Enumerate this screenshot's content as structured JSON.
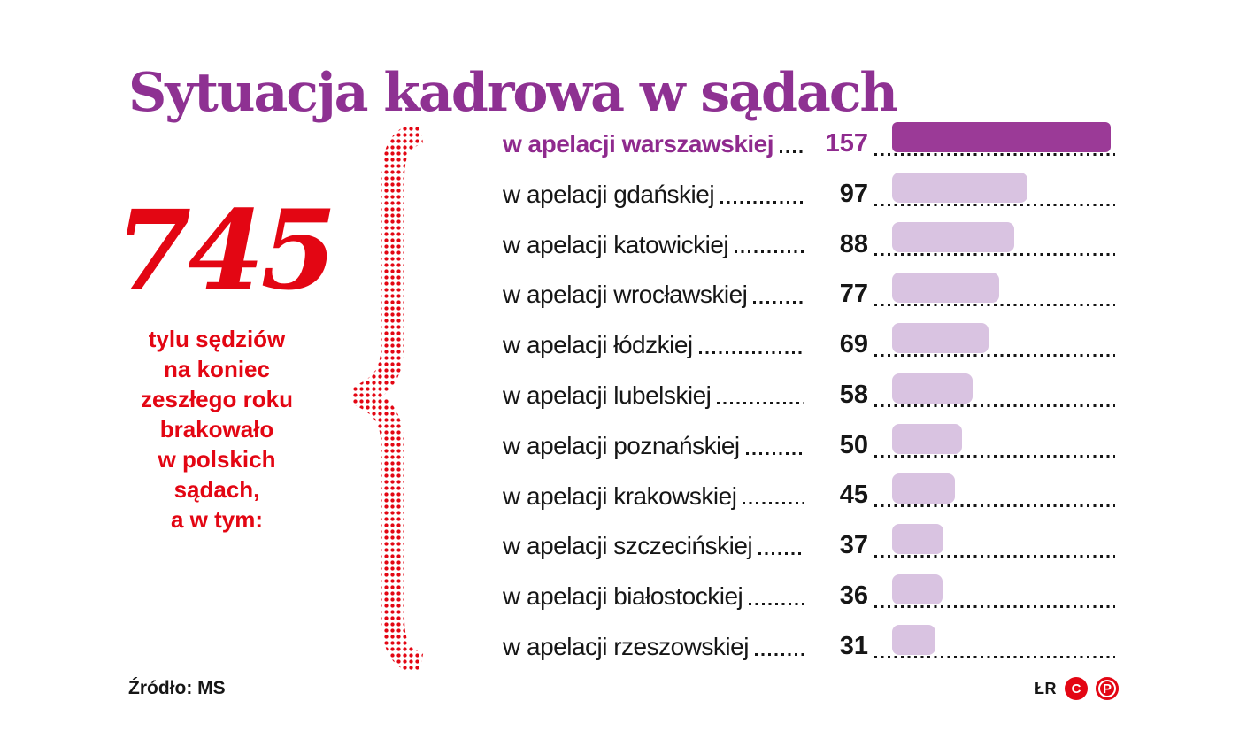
{
  "title": "Sytuacja kadrowa w sądach",
  "stat": {
    "number": "745",
    "description_lines": [
      "tylu sędziów",
      "na koniec",
      "zeszłego roku",
      "brakowało",
      "w polskich",
      "sądach,",
      "a w tym:"
    ]
  },
  "chart_data": {
    "type": "bar",
    "orientation": "horizontal",
    "title": "Sytuacja kadrowa w sądach",
    "categories": [
      "w apelacji warszawskiej",
      "w apelacji gdańskiej",
      "w apelacji katowickiej",
      "w apelacji wrocławskiej",
      "w apelacji łódzkiej",
      "w apelacji lubelskiej",
      "w apelacji poznańskiej",
      "w apelacji krakowskiej",
      "w apelacji szczecińskiej",
      "w apelacji białostockiej",
      "w apelacji rzeszowskiej"
    ],
    "values": [
      157,
      97,
      88,
      77,
      69,
      58,
      50,
      45,
      37,
      36,
      31
    ],
    "highlight_index": 0,
    "xlim": [
      0,
      157
    ],
    "legend": "none",
    "grid": "off"
  },
  "colors": {
    "title_purple": "#8e3192",
    "highlight_purple": "#8f2a8e",
    "bar_dark": "#9b3a97",
    "bar_light": "#d9c3e1",
    "accent_red": "#e30613",
    "text_black": "#161616"
  },
  "source": "Źródło: MS",
  "footer": {
    "initials": "ŁR",
    "icons": [
      {
        "name": "copyright-icon",
        "letter": "C"
      },
      {
        "name": "p-in-circle-icon",
        "letter": "P"
      }
    ]
  }
}
